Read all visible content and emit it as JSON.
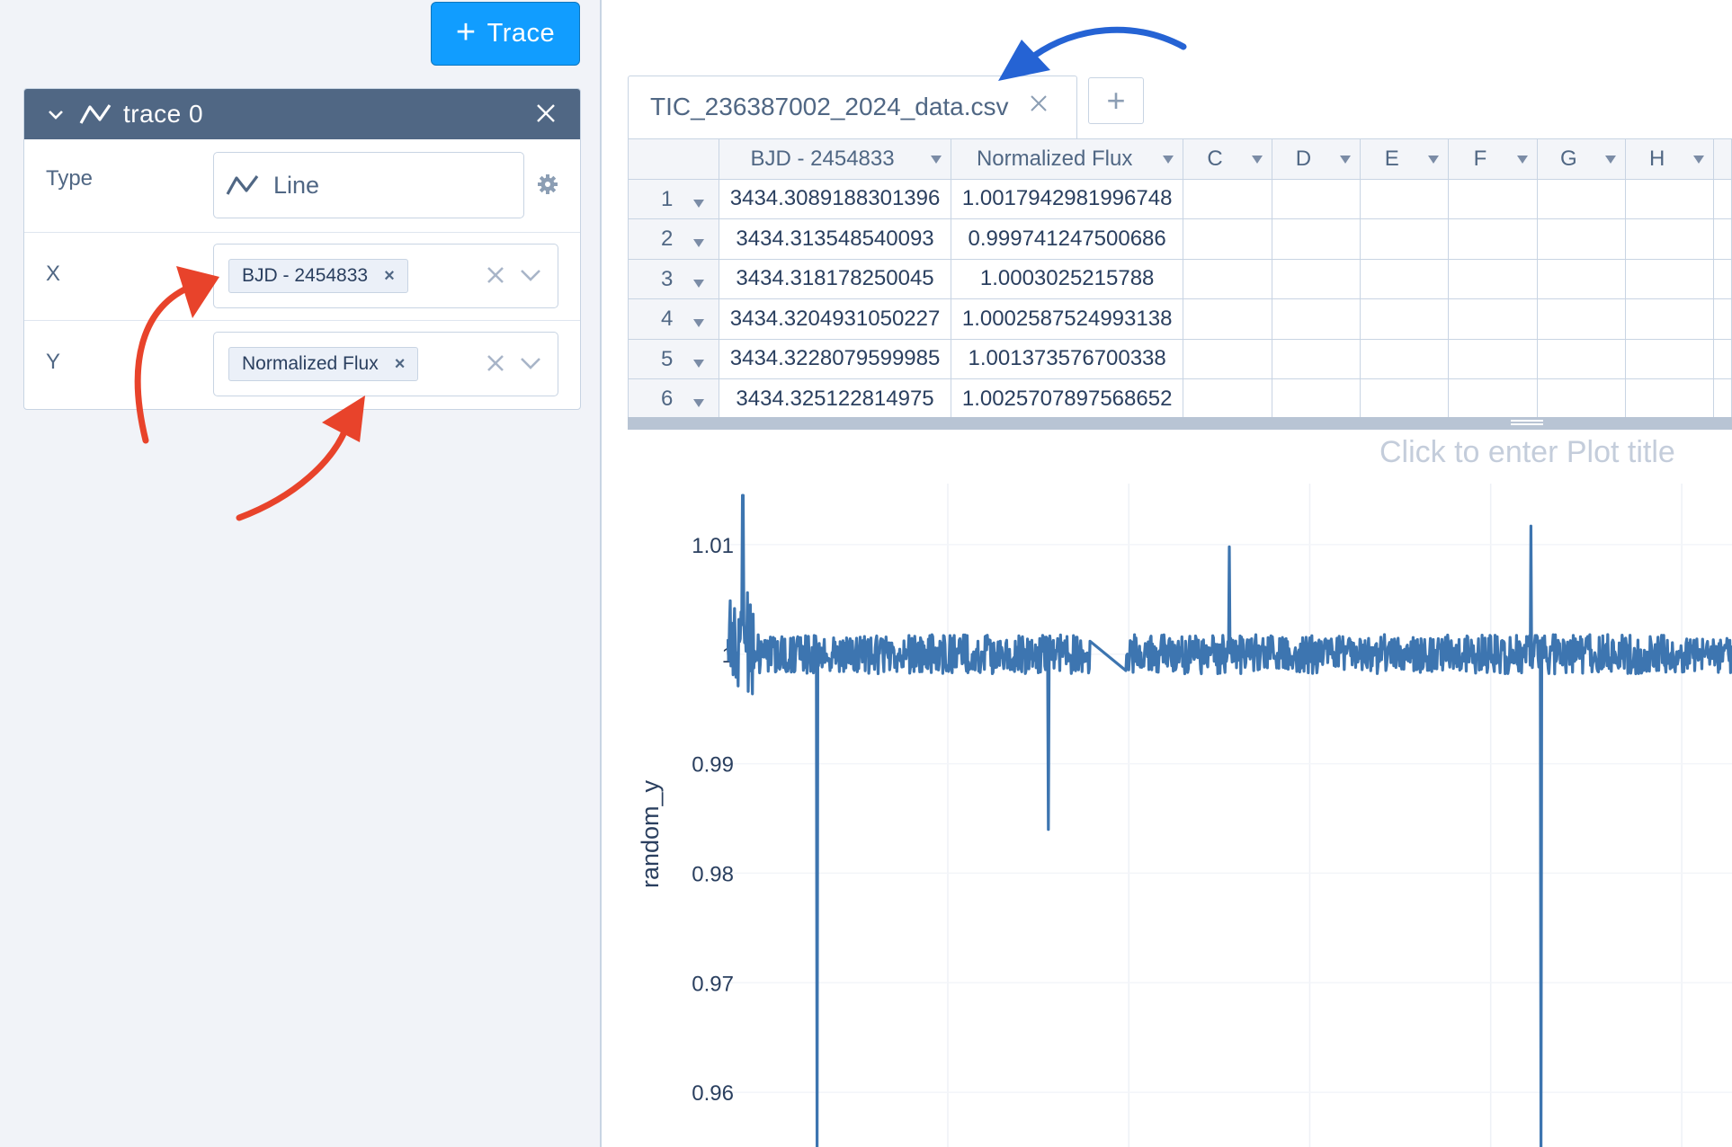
{
  "toolbar": {
    "add_trace_label": "Trace"
  },
  "trace": {
    "title": "trace 0",
    "type_label": "Type",
    "type_value": "Line",
    "x_label": "X",
    "x_value": "BJD - 2454833",
    "y_label": "Y",
    "y_value": "Normalized Flux"
  },
  "tabs": [
    {
      "label": "TIC_236387002_2024_data.csv"
    }
  ],
  "grid": {
    "columns": [
      "BJD - 2454833",
      "Normalized Flux",
      "C",
      "D",
      "E",
      "F",
      "G",
      "H"
    ],
    "rows": [
      {
        "n": "1",
        "a": "3434.3089188301396",
        "b": "1.0017942981996748"
      },
      {
        "n": "2",
        "a": "3434.313548540093",
        "b": "0.999741247500686"
      },
      {
        "n": "3",
        "a": "3434.318178250045",
        "b": "1.0003025215788"
      },
      {
        "n": "4",
        "a": "3434.3204931050227",
        "b": "1.0002587524993138"
      },
      {
        "n": "5",
        "a": "3434.3228079599985",
        "b": "1.001373576700338"
      },
      {
        "n": "6",
        "a": "3434.325122814975",
        "b": "1.0025707897568652"
      }
    ]
  },
  "plot": {
    "title_placeholder": "Click to enter Plot title"
  },
  "chart_data": {
    "type": "line",
    "title": "",
    "ylabel": "random_y",
    "ylim": [
      0.955,
      1.0205
    ],
    "y_ticks": [
      "1.01",
      "1",
      "0.99",
      "0.98",
      "0.97",
      "0.96"
    ],
    "y_tick_values": [
      1.01,
      1.0,
      0.99,
      0.98,
      0.97,
      0.96
    ],
    "grid": true,
    "series": [
      {
        "color": "#3d75b0",
        "baseline": 1.0,
        "features": [
          {
            "kind": "dip",
            "at": 0.09,
            "depth": 0.955
          },
          {
            "kind": "dip",
            "at": 0.81,
            "depth": 0.955
          },
          {
            "kind": "dip",
            "at": 0.32,
            "depth": 0.984
          },
          {
            "kind": "spike",
            "at": 0.016,
            "peak": 1.0145
          },
          {
            "kind": "spike",
            "at": 0.5,
            "peak": 1.0098
          },
          {
            "kind": "spike",
            "at": 0.8,
            "peak": 1.0117
          },
          {
            "kind": "gap",
            "from": 0.362,
            "to": 0.397
          }
        ]
      }
    ]
  },
  "colors": {
    "accent": "#119dff",
    "header": "#506784",
    "line": "#3d75b0",
    "annotation_red": "#e8432b",
    "annotation_blue": "#2563d4"
  }
}
